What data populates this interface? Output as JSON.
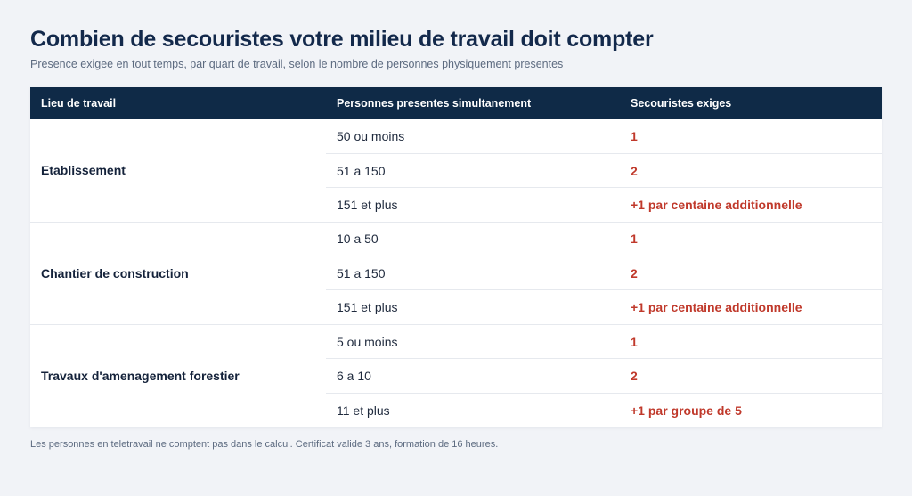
{
  "title": "Combien de secouristes votre milieu de travail doit compter",
  "subtitle": "Presence exigee en tout temps, par quart de travail, selon le nombre de personnes physiquement presentes",
  "table": {
    "headers": [
      "Lieu de travail",
      "Personnes presentes simultanement",
      "Secouristes exiges"
    ],
    "groups": [
      {
        "place": "Etablissement",
        "rows": [
          {
            "people": "50 ou moins",
            "required": "1"
          },
          {
            "people": "51 a 150",
            "required": "2"
          },
          {
            "people": "151 et plus",
            "required": "+1 par centaine additionnelle"
          }
        ]
      },
      {
        "place": "Chantier de construction",
        "rows": [
          {
            "people": "10 a 50",
            "required": "1"
          },
          {
            "people": "51 a 150",
            "required": "2"
          },
          {
            "people": "151 et plus",
            "required": "+1 par centaine additionnelle"
          }
        ]
      },
      {
        "place": "Travaux d'amenagement forestier",
        "rows": [
          {
            "people": "5 ou moins",
            "required": "1"
          },
          {
            "people": "6 a 10",
            "required": "2"
          },
          {
            "people": "11 et plus",
            "required": "+1 par groupe de 5"
          }
        ]
      }
    ]
  },
  "footnote": "Les personnes en teletravail ne comptent pas dans le calcul. Certificat valide 3 ans, formation de 16 heures.",
  "colors": {
    "header_bg": "#0f2a47",
    "title": "#13294b",
    "required_accent": "#c0392b",
    "page_bg": "#f1f3f7"
  }
}
